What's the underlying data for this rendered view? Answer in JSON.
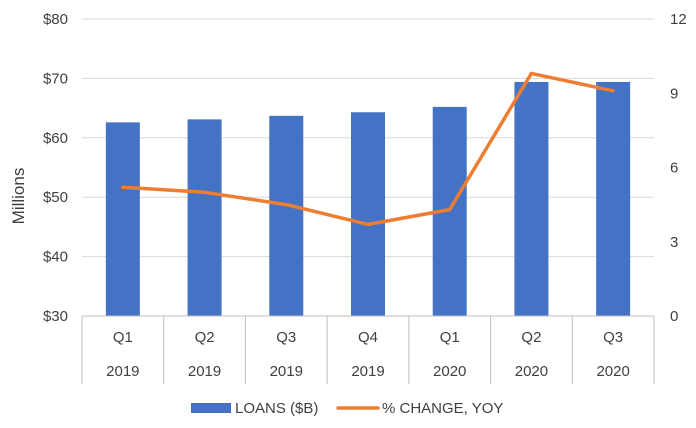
{
  "chart_data": {
    "type": "bar",
    "categories": [
      {
        "quarter": "Q1",
        "year": "2019"
      },
      {
        "quarter": "Q2",
        "year": "2019"
      },
      {
        "quarter": "Q3",
        "year": "2019"
      },
      {
        "quarter": "Q4",
        "year": "2019"
      },
      {
        "quarter": "Q1",
        "year": "2020"
      },
      {
        "quarter": "Q2",
        "year": "2020"
      },
      {
        "quarter": "Q3",
        "year": "2020"
      }
    ],
    "series": [
      {
        "name": "LOANS ($B)",
        "type": "bar",
        "axis": "left",
        "color": "#4472C4",
        "values": [
          62.6,
          63.1,
          63.7,
          64.3,
          65.2,
          69.4,
          69.4
        ]
      },
      {
        "name": "% CHANGE, YOY",
        "type": "line",
        "axis": "right",
        "color": "#ED7D31",
        "values": [
          5.2,
          5.0,
          4.5,
          3.7,
          4.3,
          9.8,
          9.1
        ]
      }
    ],
    "ylabel": "Millions",
    "y_left": {
      "min": 30,
      "max": 80,
      "ticks": [
        "$30",
        "$40",
        "$50",
        "$60",
        "$70",
        "$80"
      ],
      "values": [
        30,
        40,
        50,
        60,
        70,
        80
      ]
    },
    "y_right": {
      "min": 0,
      "max": 12,
      "ticks": [
        "0",
        "3",
        "6",
        "9",
        "12"
      ],
      "values": [
        0,
        3,
        6,
        9,
        12
      ]
    },
    "grid": true,
    "legend": "bottom-center"
  }
}
